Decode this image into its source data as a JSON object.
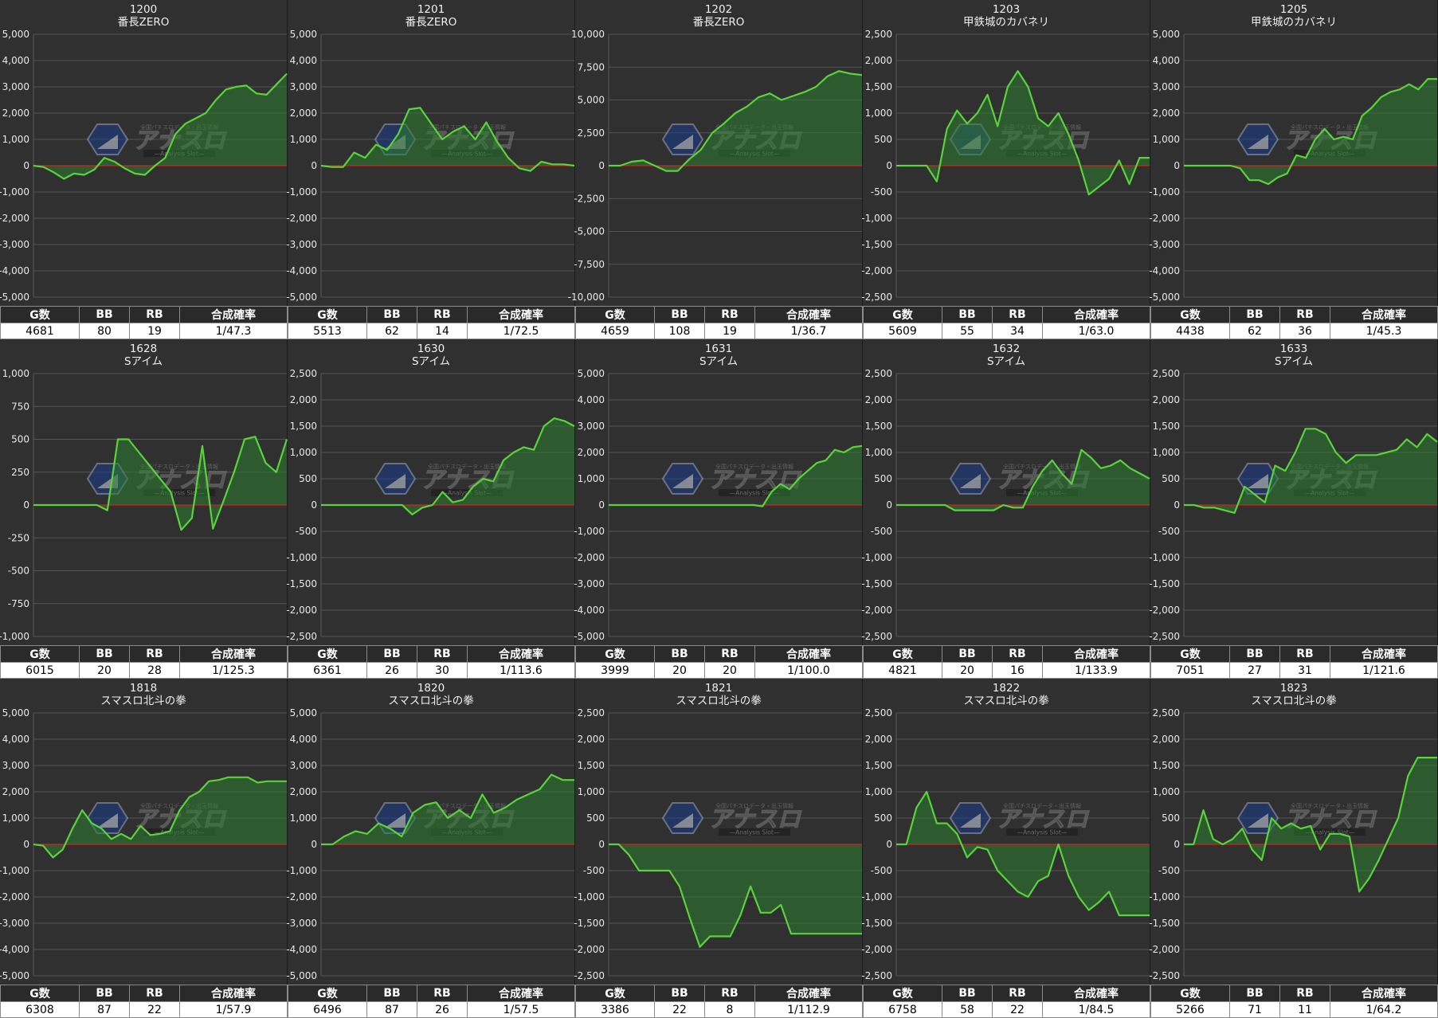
{
  "colors": {
    "background": "#303030",
    "grid": "#555555",
    "zero_line": "#d42020",
    "series_line": "#5ad23c",
    "series_fill": "#2e7d32",
    "table_header_bg": "#2a2a2a",
    "table_body_bg": "#ffffff"
  },
  "watermark": {
    "main_text": "アナスロ",
    "sub_text": "—Analysis Slot—",
    "top_text": "全国パチスロデータ・出玉情報"
  },
  "table_headers": [
    "G数",
    "BB",
    "RB",
    "合成確率"
  ],
  "chart_data": [
    {
      "type": "area",
      "machine_no": "1200",
      "machine_name": "番長ZERO",
      "ylim": [
        -5000,
        5000
      ],
      "yticks": [
        -5000,
        -4000,
        -3000,
        -2000,
        -1000,
        0,
        1000,
        2000,
        3000,
        4000,
        5000
      ],
      "values": [
        0,
        -50,
        -250,
        -500,
        -300,
        -350,
        -150,
        300,
        150,
        -100,
        -300,
        -350,
        0,
        300,
        1200,
        1600,
        1800,
        2000,
        2500,
        2900,
        3000,
        3050,
        2750,
        2700,
        3100,
        3500
      ],
      "stats": {
        "g": "4681",
        "bb": "80",
        "rb": "19",
        "prob": "1/47.3"
      }
    },
    {
      "type": "area",
      "machine_no": "1201",
      "machine_name": "番長ZERO",
      "ylim": [
        -5000,
        5000
      ],
      "yticks": [
        -5000,
        -4000,
        -3000,
        -2000,
        -1000,
        0,
        1000,
        2000,
        3000,
        4000,
        5000
      ],
      "values": [
        0,
        -50,
        -50,
        500,
        300,
        800,
        600,
        1200,
        2150,
        2200,
        1600,
        1000,
        1300,
        1500,
        1000,
        1650,
        900,
        300,
        -100,
        -200,
        150,
        50,
        50,
        0
      ],
      "stats": {
        "g": "5513",
        "bb": "62",
        "rb": "14",
        "prob": "1/72.5"
      }
    },
    {
      "type": "area",
      "machine_no": "1202",
      "machine_name": "番長ZERO",
      "ylim": [
        -10000,
        10000
      ],
      "yticks": [
        -10000,
        -7500,
        -5000,
        -2500,
        0,
        2500,
        5000,
        7500,
        10000
      ],
      "values": [
        0,
        0,
        300,
        400,
        0,
        -400,
        -400,
        500,
        1200,
        2500,
        3200,
        4000,
        4500,
        5200,
        5500,
        5000,
        5300,
        5600,
        6000,
        6800,
        7200,
        7000,
        6900
      ],
      "stats": {
        "g": "4659",
        "bb": "108",
        "rb": "19",
        "prob": "1/36.7"
      }
    },
    {
      "type": "area",
      "machine_no": "1203",
      "machine_name": "甲鉄城のカバネリ",
      "ylim": [
        -2500,
        2500
      ],
      "yticks": [
        -2500,
        -2000,
        -1500,
        -1000,
        -500,
        0,
        500,
        1000,
        1500,
        2000,
        2500
      ],
      "values": [
        0,
        0,
        0,
        0,
        -300,
        700,
        1050,
        800,
        1000,
        1350,
        750,
        1500,
        1800,
        1500,
        900,
        750,
        1000,
        600,
        100,
        -550,
        -400,
        -250,
        100,
        -350,
        150,
        150
      ],
      "stats": {
        "g": "5609",
        "bb": "55",
        "rb": "34",
        "prob": "1/63.0"
      }
    },
    {
      "type": "area",
      "machine_no": "1205",
      "machine_name": "甲鉄城のカバネリ",
      "ylim": [
        -5000,
        5000
      ],
      "yticks": [
        -5000,
        -4000,
        -3000,
        -2000,
        -1000,
        0,
        1000,
        2000,
        3000,
        4000,
        5000
      ],
      "values": [
        0,
        0,
        0,
        0,
        0,
        0,
        -100,
        -550,
        -550,
        -700,
        -450,
        -300,
        400,
        300,
        1000,
        1400,
        1000,
        1100,
        1000,
        1900,
        2200,
        2600,
        2800,
        2900,
        3100,
        2900,
        3300,
        3300
      ],
      "stats": {
        "g": "4438",
        "bb": "62",
        "rb": "36",
        "prob": "1/45.3"
      }
    },
    {
      "type": "area",
      "machine_no": "1628",
      "machine_name": "Sアイム",
      "ylim": [
        -1000,
        1000
      ],
      "yticks": [
        -1000,
        -750,
        -500,
        -250,
        0,
        250,
        500,
        750,
        1000
      ],
      "values": [
        0,
        0,
        0,
        0,
        0,
        0,
        0,
        -40,
        500,
        500,
        400,
        300,
        200,
        100,
        -190,
        -100,
        450,
        -180,
        30,
        250,
        500,
        520,
        320,
        250,
        500
      ],
      "stats": {
        "g": "6015",
        "bb": "20",
        "rb": "28",
        "prob": "1/125.3"
      }
    },
    {
      "type": "area",
      "machine_no": "1630",
      "machine_name": "Sアイム",
      "ylim": [
        -2500,
        2500
      ],
      "yticks": [
        -2500,
        -2000,
        -1500,
        -1000,
        -500,
        0,
        500,
        1000,
        1500,
        2000,
        2500
      ],
      "values": [
        0,
        0,
        0,
        0,
        0,
        0,
        0,
        0,
        0,
        -180,
        -50,
        0,
        250,
        50,
        100,
        350,
        500,
        450,
        850,
        1000,
        1100,
        1050,
        1500,
        1650,
        1600,
        1500
      ],
      "stats": {
        "g": "6361",
        "bb": "26",
        "rb": "30",
        "prob": "1/113.6"
      }
    },
    {
      "type": "area",
      "machine_no": "1631",
      "machine_name": "Sアイム",
      "ylim": [
        -5000,
        5000
      ],
      "yticks": [
        -5000,
        -4000,
        -3000,
        -2000,
        -1000,
        0,
        1000,
        2000,
        3000,
        4000,
        5000
      ],
      "values": [
        0,
        0,
        0,
        0,
        0,
        0,
        0,
        0,
        0,
        0,
        0,
        0,
        0,
        0,
        0,
        0,
        0,
        -50,
        500,
        800,
        600,
        1000,
        1300,
        1600,
        1700,
        2100,
        2000,
        2200,
        2250
      ],
      "stats": {
        "g": "3999",
        "bb": "20",
        "rb": "20",
        "prob": "1/100.0"
      }
    },
    {
      "type": "area",
      "machine_no": "1632",
      "machine_name": "Sアイム",
      "ylim": [
        -2500,
        2500
      ],
      "yticks": [
        -2500,
        -2000,
        -1500,
        -1000,
        -500,
        0,
        500,
        1000,
        1500,
        2000,
        2500
      ],
      "values": [
        0,
        0,
        0,
        0,
        0,
        0,
        -100,
        -100,
        -100,
        -100,
        -100,
        0,
        -50,
        -50,
        350,
        650,
        850,
        600,
        400,
        1050,
        900,
        700,
        750,
        850,
        700,
        600,
        500
      ],
      "stats": {
        "g": "4821",
        "bb": "20",
        "rb": "16",
        "prob": "1/133.9"
      }
    },
    {
      "type": "area",
      "machine_no": "1633",
      "machine_name": "Sアイム",
      "ylim": [
        -2500,
        2500
      ],
      "yticks": [
        -2500,
        -2000,
        -1500,
        -1000,
        -500,
        0,
        500,
        1000,
        1500,
        2000,
        2500
      ],
      "values": [
        0,
        0,
        -50,
        -50,
        -100,
        -150,
        350,
        200,
        50,
        750,
        650,
        1000,
        1450,
        1450,
        1350,
        1000,
        800,
        950,
        950,
        950,
        1000,
        1050,
        1250,
        1100,
        1350,
        1200
      ],
      "stats": {
        "g": "7051",
        "bb": "27",
        "rb": "31",
        "prob": "1/121.6"
      }
    },
    {
      "type": "area",
      "machine_no": "1818",
      "machine_name": "スマスロ北斗の拳",
      "ylim": [
        -5000,
        5000
      ],
      "yticks": [
        -5000,
        -4000,
        -3000,
        -2000,
        -1000,
        0,
        1000,
        2000,
        3000,
        4000,
        5000
      ],
      "values": [
        0,
        -50,
        -500,
        -200,
        600,
        1300,
        800,
        600,
        200,
        400,
        200,
        700,
        350,
        400,
        500,
        1300,
        1800,
        2000,
        2400,
        2450,
        2550,
        2550,
        2550,
        2350,
        2400,
        2400,
        2400
      ],
      "stats": {
        "g": "6308",
        "bb": "87",
        "rb": "22",
        "prob": "1/57.9"
      }
    },
    {
      "type": "area",
      "machine_no": "1820",
      "machine_name": "スマスロ北斗の拳",
      "ylim": [
        -5000,
        5000
      ],
      "yticks": [
        -5000,
        -4000,
        -3000,
        -2000,
        -1000,
        0,
        1000,
        2000,
        3000,
        4000,
        5000
      ],
      "values": [
        0,
        0,
        300,
        500,
        400,
        800,
        600,
        300,
        1200,
        1500,
        1600,
        1000,
        1300,
        1000,
        1900,
        1200,
        1400,
        1700,
        1900,
        2100,
        2650,
        2450,
        2450
      ],
      "stats": {
        "g": "6496",
        "bb": "87",
        "rb": "26",
        "prob": "1/57.5"
      }
    },
    {
      "type": "area",
      "machine_no": "1821",
      "machine_name": "スマスロ北斗の拳",
      "ylim": [
        -2500,
        2500
      ],
      "yticks": [
        -2500,
        -2000,
        -1500,
        -1000,
        -500,
        0,
        500,
        1000,
        1500,
        2000,
        2500
      ],
      "values": [
        0,
        0,
        -200,
        -500,
        -500,
        -500,
        -500,
        -800,
        -1400,
        -1950,
        -1750,
        -1750,
        -1750,
        -1350,
        -800,
        -1300,
        -1300,
        -1150,
        -1700,
        -1700,
        -1700,
        -1700,
        -1700,
        -1700,
        -1700,
        -1700
      ],
      "stats": {
        "g": "3386",
        "bb": "22",
        "rb": "8",
        "prob": "1/112.9"
      }
    },
    {
      "type": "area",
      "machine_no": "1822",
      "machine_name": "スマスロ北斗の拳",
      "ylim": [
        -2500,
        2500
      ],
      "yticks": [
        -2500,
        -2000,
        -1500,
        -1000,
        -500,
        0,
        500,
        1000,
        1500,
        2000,
        2500
      ],
      "values": [
        0,
        0,
        700,
        1000,
        400,
        400,
        200,
        -250,
        -50,
        -100,
        -500,
        -700,
        -900,
        -1000,
        -700,
        -600,
        0,
        -600,
        -1000,
        -1250,
        -1100,
        -900,
        -1350,
        -1350,
        -1350,
        -1350
      ],
      "stats": {
        "g": "6758",
        "bb": "58",
        "rb": "22",
        "prob": "1/84.5"
      }
    },
    {
      "type": "area",
      "machine_no": "1823",
      "machine_name": "スマスロ北斗の拳",
      "ylim": [
        -2500,
        2500
      ],
      "yticks": [
        -2500,
        -2000,
        -1500,
        -1000,
        -500,
        0,
        500,
        1000,
        1500,
        2000,
        2500
      ],
      "values": [
        0,
        0,
        650,
        100,
        0,
        100,
        300,
        -100,
        -300,
        500,
        300,
        400,
        300,
        350,
        -100,
        200,
        200,
        150,
        -900,
        -650,
        -300,
        100,
        500,
        1300,
        1650,
        1650,
        1650
      ],
      "stats": {
        "g": "5266",
        "bb": "71",
        "rb": "11",
        "prob": "1/64.2"
      }
    }
  ]
}
